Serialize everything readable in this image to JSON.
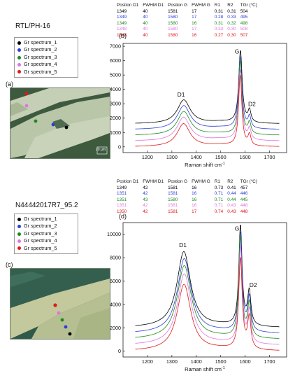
{
  "figure": {
    "sample_top": "RTL/PH-16",
    "sample_bottom": "N44442017R7_95.2",
    "label_a": "(a)",
    "label_b": "(b)",
    "label_c": "(c)",
    "label_d": "(d)",
    "scale_bar": "20 μm"
  },
  "legend": {
    "top": [
      {
        "label": "Gr spectrum_1",
        "color": "#000000"
      },
      {
        "label": "Gr spectrum_2",
        "color": "#2c3fd6"
      },
      {
        "label": "Gr spectrum_3",
        "color": "#1a8a1a"
      },
      {
        "label": "Gr spectrum_4",
        "color": "#e075e0"
      },
      {
        "label": "Gr spectrum_5",
        "color": "#e01818"
      }
    ],
    "bottom": [
      {
        "label": "Gr spectrum_1",
        "color": "#000000"
      },
      {
        "label": "Gr spectrum_2",
        "color": "#2c3fd6"
      },
      {
        "label": "Gr spectrum_3",
        "color": "#1a8a1a"
      },
      {
        "label": "Gr spectrum_4",
        "color": "#e075e0"
      },
      {
        "label": "Gr spectrum_5",
        "color": "#e01818"
      }
    ]
  },
  "tables": {
    "top": {
      "headers": [
        "Postion D1",
        "FWHM D1",
        "Postion G",
        "FWHM G",
        "R1",
        "R2",
        "TGr (°C)"
      ],
      "rows": [
        {
          "color": "#000000",
          "cells": [
            "1349",
            "40",
            "1581",
            "17",
            "0.31",
            "0.31",
            "504"
          ]
        },
        {
          "color": "#2c3fd6",
          "cells": [
            "1349",
            "40",
            "1580",
            "17",
            "0.28",
            "0.33",
            "495"
          ]
        },
        {
          "color": "#1a8a1a",
          "cells": [
            "1349",
            "40",
            "1580",
            "16",
            "0.31",
            "0.32",
            "498"
          ]
        },
        {
          "color": "#e075e0",
          "cells": [
            "1348",
            "40",
            "1580",
            "17",
            "0.33",
            "0.30",
            "508"
          ]
        },
        {
          "color": "#e01818",
          "cells": [
            "1348",
            "40",
            "1580",
            "16",
            "0.27",
            "0.30",
            "507"
          ]
        }
      ]
    },
    "bottom": {
      "headers": [
        "Postion D1",
        "FWHM D1",
        "Postion G",
        "FWHM G",
        "R1",
        "R2",
        "TGr (°C)"
      ],
      "rows": [
        {
          "color": "#000000",
          "cells": [
            "1349",
            "42",
            "1581",
            "16",
            "0.73",
            "0.41",
            "457"
          ]
        },
        {
          "color": "#2c3fd6",
          "cells": [
            "1351",
            "42",
            "1581",
            "16",
            "0.71",
            "0.44",
            "446"
          ]
        },
        {
          "color": "#1a8a1a",
          "cells": [
            "1351",
            "43",
            "1580",
            "16",
            "0.71",
            "0.44",
            "445"
          ]
        },
        {
          "color": "#e075e0",
          "cells": [
            "1351",
            "42",
            "1581",
            "16",
            "0.71",
            "0.43",
            "448"
          ]
        },
        {
          "color": "#e01818",
          "cells": [
            "1350",
            "42",
            "1581",
            "17",
            "0.74",
            "0.43",
            "448"
          ]
        }
      ]
    }
  },
  "chart_data": [
    {
      "type": "line",
      "panel": "(b)",
      "xlabel": "Raman shift  cm",
      "xlabel_sup": "-1",
      "ylabel": "",
      "xlim": [
        1100,
        1770
      ],
      "ylim": [
        -400,
        7200
      ],
      "xticks": [
        1200,
        1300,
        1400,
        1500,
        1600,
        1700
      ],
      "yticks": [
        0,
        1000,
        2000,
        3000,
        4000,
        5000,
        6000,
        7000
      ],
      "annotations": [
        {
          "text": "D1",
          "x": 1338,
          "y": 3500
        },
        {
          "text": "G",
          "x": 1567,
          "y": 6500
        },
        {
          "text": "D2",
          "x": 1628,
          "y": 2850
        }
      ],
      "series": [
        {
          "color": "#000000",
          "baseline": 1600,
          "d1": {
            "center": 1349,
            "fwhm": 40,
            "height": 1650
          },
          "g": {
            "center": 1581,
            "fwhm": 17,
            "height": 5050
          },
          "d2": {
            "center": 1618,
            "fwhm": 14,
            "height": 820
          }
        },
        {
          "color": "#2c3fd6",
          "baseline": 1200,
          "d1": {
            "center": 1349,
            "fwhm": 40,
            "height": 1650
          },
          "g": {
            "center": 1580,
            "fwhm": 17,
            "height": 5000
          },
          "d2": {
            "center": 1618,
            "fwhm": 14,
            "height": 800
          }
        },
        {
          "color": "#1a8a1a",
          "baseline": 800,
          "d1": {
            "center": 1349,
            "fwhm": 40,
            "height": 1650
          },
          "g": {
            "center": 1580,
            "fwhm": 16,
            "height": 5150
          },
          "d2": {
            "center": 1618,
            "fwhm": 14,
            "height": 800
          }
        },
        {
          "color": "#e075e0",
          "baseline": 400,
          "d1": {
            "center": 1348,
            "fwhm": 40,
            "height": 1650
          },
          "g": {
            "center": 1580,
            "fwhm": 17,
            "height": 4900
          },
          "d2": {
            "center": 1618,
            "fwhm": 14,
            "height": 780
          }
        },
        {
          "color": "#e01818",
          "baseline": 0,
          "d1": {
            "center": 1348,
            "fwhm": 40,
            "height": 1600
          },
          "g": {
            "center": 1580,
            "fwhm": 16,
            "height": 4900
          },
          "d2": {
            "center": 1618,
            "fwhm": 14,
            "height": 760
          }
        }
      ]
    },
    {
      "type": "line",
      "panel": "(d)",
      "xlabel": "Raman shift  cm",
      "xlabel_sup": "-1",
      "ylabel": "",
      "xlim": [
        1100,
        1770
      ],
      "ylim": [
        -500,
        11000
      ],
      "xticks": [
        1200,
        1300,
        1400,
        1500,
        1600,
        1700
      ],
      "yticks": [
        0,
        2000,
        4000,
        6000,
        8000,
        10000
      ],
      "annotations": [
        {
          "text": "D1",
          "x": 1345,
          "y": 8900
        },
        {
          "text": "G",
          "x": 1567,
          "y": 10300
        },
        {
          "text": "D2",
          "x": 1633,
          "y": 5500
        }
      ],
      "series": [
        {
          "color": "#000000",
          "baseline": 2000,
          "d1": {
            "center": 1349,
            "fwhm": 42,
            "height": 6500
          },
          "g": {
            "center": 1581,
            "fwhm": 16,
            "height": 8600
          },
          "d2": {
            "center": 1617,
            "fwhm": 16,
            "height": 2900
          }
        },
        {
          "color": "#2c3fd6",
          "baseline": 1500,
          "d1": {
            "center": 1351,
            "fwhm": 42,
            "height": 6400
          },
          "g": {
            "center": 1581,
            "fwhm": 16,
            "height": 8500
          },
          "d2": {
            "center": 1617,
            "fwhm": 16,
            "height": 2900
          }
        },
        {
          "color": "#1a8a1a",
          "baseline": 1000,
          "d1": {
            "center": 1351,
            "fwhm": 43,
            "height": 6300
          },
          "g": {
            "center": 1580,
            "fwhm": 16,
            "height": 8600
          },
          "d2": {
            "center": 1617,
            "fwhm": 16,
            "height": 2900
          }
        },
        {
          "color": "#e075e0",
          "baseline": 500,
          "d1": {
            "center": 1351,
            "fwhm": 42,
            "height": 6100
          },
          "g": {
            "center": 1581,
            "fwhm": 16,
            "height": 8400
          },
          "d2": {
            "center": 1617,
            "fwhm": 16,
            "height": 2800
          }
        },
        {
          "color": "#e01818",
          "baseline": 0,
          "d1": {
            "center": 1350,
            "fwhm": 42,
            "height": 5700
          },
          "g": {
            "center": 1581,
            "fwhm": 17,
            "height": 7800
          },
          "d2": {
            "center": 1617,
            "fwhm": 16,
            "height": 2700
          }
        }
      ]
    }
  ]
}
